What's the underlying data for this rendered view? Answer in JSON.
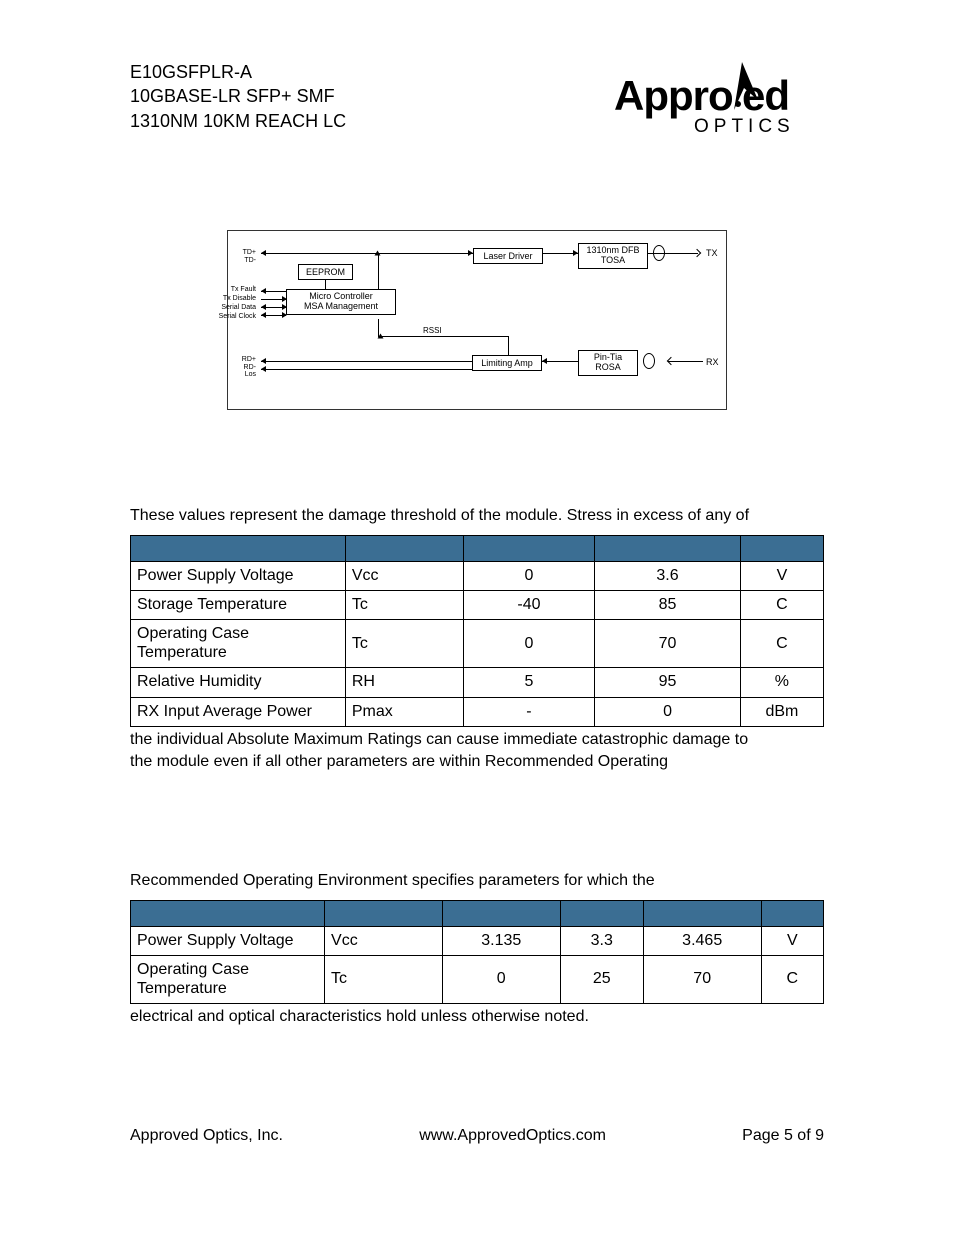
{
  "header": {
    "line1": "E10GSFPLR-A",
    "line2": "10GBASE-LR SFP+ SMF",
    "line3": "1310NM 10KM REACH LC",
    "logo_main": "Appro",
    "logo_ved": "ved",
    "logo_sub": "OPTICS"
  },
  "diagram": {
    "left_labels": {
      "td": "TD+\nTD-",
      "txfault": "Tx Fault",
      "txdisable": "Tx Disable",
      "serialdata": "Serial Data",
      "serialclock": "Serial Clock",
      "rd": "RD+\nRD-\nLos"
    },
    "blocks": {
      "eeprom": "EEPROM",
      "micro": "Micro Controller\nMSA Management",
      "laserdriver": "Laser Driver",
      "limitingamp": "Limiting Amp",
      "tosa": "1310nm DFB\nTOSA",
      "rosa": "Pin-Tia\nROSA",
      "rssi": "RSSI"
    },
    "right_labels": {
      "tx": "TX",
      "rx": "RX"
    }
  },
  "para1": "These values represent the damage threshold of the module. Stress in excess of any of",
  "table1": {
    "header_bg": "#3b6e93",
    "columns": [
      "",
      "",
      "",
      "",
      ""
    ],
    "rows": [
      [
        "Power Supply Voltage",
        "Vcc",
        "0",
        "3.6",
        "V"
      ],
      [
        "Storage Temperature",
        "Tc",
        "-40",
        "85",
        "C"
      ],
      [
        "Operating Case Temperature",
        "Tc",
        "0",
        "70",
        "C"
      ],
      [
        "Relative Humidity",
        "RH",
        "5",
        "95",
        "%"
      ],
      [
        "RX Input Average Power",
        "Pmax",
        "-",
        "0",
        "dBm"
      ]
    ],
    "col_widths": [
      "31%",
      "17%",
      "19%",
      "21%",
      "12%"
    ],
    "align": [
      "left",
      "left",
      "center",
      "center",
      "center"
    ]
  },
  "para2a": "the individual Absolute Maximum Ratings can cause immediate catastrophic damage to",
  "para2b": "the module even if all other parameters are within Recommended Operating",
  "para3": "Recommended Operating Environment specifies parameters for which the",
  "table2": {
    "header_bg": "#3b6e93",
    "rows": [
      [
        "Power Supply Voltage",
        "Vcc",
        "3.135",
        "3.3",
        "3.465",
        "V"
      ],
      [
        "Operating Case Temperature",
        "Tc",
        "0",
        "25",
        "70",
        "C"
      ]
    ],
    "col_widths": [
      "28%",
      "17%",
      "17%",
      "12%",
      "17%",
      "9%"
    ],
    "align": [
      "left",
      "left",
      "center",
      "center",
      "center",
      "center"
    ]
  },
  "para4": "electrical and optical characteristics hold unless otherwise noted.",
  "footer": {
    "left": "Approved Optics, Inc.",
    "center": "www.ApprovedOptics.com",
    "right": "Page 5 of 9"
  }
}
